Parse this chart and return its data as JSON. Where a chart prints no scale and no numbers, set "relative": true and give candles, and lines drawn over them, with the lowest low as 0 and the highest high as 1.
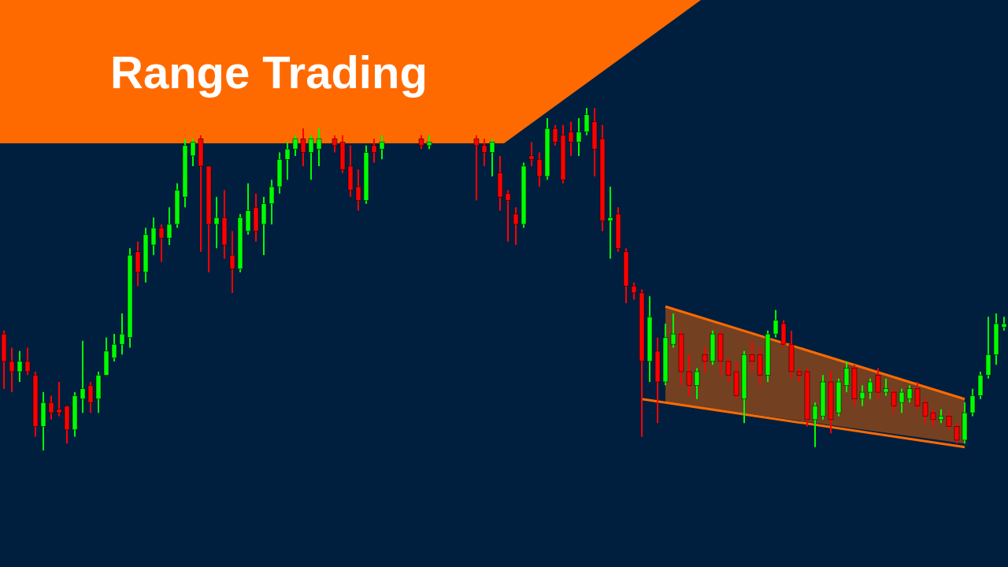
{
  "chart_data": {
    "type": "candlestick",
    "title": "Range Trading",
    "relative": true,
    "colors": [
      "#ff0000",
      "#ff0000",
      "#00ff00",
      "#ff0000",
      "#ff0000",
      "#00ff00",
      "#ff0000",
      "#ff0000",
      "#ff0000",
      "#00ff00",
      "#00ff00",
      "#ff0000",
      "#00ff00",
      "#00ff00",
      "#00ff00",
      "#00ff00",
      "#00ff00",
      "#ff0000",
      "#00ff00",
      "#00ff00",
      "#ff0000",
      "#00ff00",
      "#00ff00",
      "#00ff00",
      "#00ff00",
      "#ff0000",
      "#ff0000",
      "#00ff00",
      "#ff0000",
      "#ff0000",
      "#00ff00",
      "#00ff00",
      "#ff0000",
      "#00ff00",
      "#00ff00",
      "#00ff00",
      "#00ff00",
      "#00ff00",
      "#ff0000",
      "#00ff00",
      "#00ff00",
      null,
      "#ff0000",
      "#ff0000",
      "#ff0000",
      "#ff0000",
      "#00ff00",
      "#ff0000",
      "#00ff00",
      null,
      null,
      null,
      null,
      "#ff0000",
      "#00ff00",
      null,
      null,
      null,
      null,
      null,
      "#ff0000",
      "#ff0000",
      "#00ff00",
      "#ff0000",
      "#ff0000",
      "#ff0000",
      "#00ff00",
      "#ff0000",
      "#ff0000",
      "#00ff00",
      "#ff0000",
      "#ff0000",
      "#ff0000",
      "#00ff00",
      "#00ff00",
      "#ff0000",
      "#ff0000",
      "#00ff00",
      "#ff0000",
      "#ff0000",
      "#ff0000",
      "#ff0000",
      "#00ff00",
      "#ff0000",
      "#00ff00",
      "#00ff00",
      "#ff0000",
      "#ff0000",
      "#00ff00",
      "#ff0000",
      "#00ff00",
      "#ff0000",
      "#ff0000",
      "#ff0000",
      "#00ff00",
      "#ff0000",
      "#ff0000",
      "#00ff00",
      "#00ff00",
      "#ff0000",
      "#ff0000",
      "#ff0000",
      "#ff0000",
      "#00ff00",
      "#00ff00",
      "#ff0000",
      "#00ff00",
      "#00ff00",
      "#ff0000",
      "#00ff00",
      "#00ff00",
      "#ff0000",
      "#00ff00",
      "#ff0000",
      "#00ff00",
      "#00ff00",
      "#ff0000",
      "#ff0000",
      "#ff0000",
      "#00ff00",
      "#ff0000",
      "#ff0000",
      "#00ff00",
      "#00ff00",
      "#00ff00",
      "#00ff00",
      "#00ff00",
      "#00ff00"
    ],
    "categories": [
      null,
      null,
      null,
      null,
      null,
      null,
      null,
      null,
      null,
      null,
      null,
      null,
      null,
      null,
      null,
      null,
      null,
      null,
      null,
      null,
      null,
      null,
      null,
      null,
      null,
      null,
      null,
      null,
      null,
      null,
      null,
      null,
      null,
      null,
      null,
      null,
      null,
      null,
      null,
      null,
      null,
      null,
      null,
      null,
      null,
      null,
      null,
      null,
      null,
      null,
      null,
      null,
      null,
      null,
      null,
      null,
      null,
      null,
      null,
      null,
      null,
      null,
      null,
      null,
      null,
      null,
      null,
      null,
      null,
      null,
      null,
      null,
      null,
      null,
      null,
      null,
      null,
      null,
      null,
      null,
      null,
      null,
      null,
      null,
      null,
      null,
      null,
      null,
      null,
      null,
      null,
      null,
      null,
      null,
      null,
      null,
      null,
      null,
      null,
      null,
      null,
      null,
      null,
      null,
      null,
      null,
      null,
      null,
      null,
      null,
      null,
      null,
      null,
      null,
      null,
      null,
      null,
      null,
      null,
      null,
      null,
      null,
      null,
      null,
      null,
      null,
      null,
      null
    ],
    "ohlc": [
      [
        0.34,
        0.35,
        0.18,
        0.26
      ],
      [
        0.26,
        0.3,
        0.17,
        0.23
      ],
      [
        0.23,
        0.29,
        0.2,
        0.26
      ],
      [
        0.26,
        0.3,
        0.22,
        0.23
      ],
      [
        0.22,
        0.23,
        0.04,
        0.07
      ],
      [
        0.07,
        0.17,
        0,
        0.14
      ],
      [
        0.14,
        0.16,
        0.09,
        0.11
      ],
      [
        0.12,
        0.2,
        0.1,
        0.11
      ],
      [
        0.13,
        0.13,
        0.02,
        0.06
      ],
      [
        0.06,
        0.17,
        0.04,
        0.16
      ],
      [
        0.15,
        0.32,
        0.11,
        0.18
      ],
      [
        0.19,
        0.2,
        0.11,
        0.14
      ],
      [
        0.15,
        0.23,
        0.11,
        0.22
      ],
      [
        0.22,
        0.33,
        0.22,
        0.29
      ],
      [
        0.27,
        0.34,
        0.26,
        0.31
      ],
      [
        0.31,
        0.4,
        0.28,
        0.34
      ],
      [
        0.33,
        0.59,
        0.3,
        0.57
      ],
      [
        0.58,
        0.61,
        0.48,
        0.52
      ],
      [
        0.52,
        0.65,
        0.49,
        0.63
      ],
      [
        0.6,
        0.68,
        0.57,
        0.65
      ],
      [
        0.65,
        0.66,
        0.55,
        0.62
      ],
      [
        0.62,
        0.71,
        0.6,
        0.66
      ],
      [
        0.66,
        0.78,
        0.65,
        0.76
      ],
      [
        0.74,
        0.91,
        0.71,
        0.89
      ],
      [
        0.86,
        0.91,
        0.83,
        0.9
      ],
      [
        0.91,
        0.92,
        0.58,
        0.83
      ],
      [
        0.83,
        0.83,
        0.52,
        0.66
      ],
      [
        0.66,
        0.74,
        0.59,
        0.68
      ],
      [
        0.68,
        0.76,
        0.56,
        0.6
      ],
      [
        0.57,
        0.64,
        0.46,
        0.53
      ],
      [
        0.53,
        0.69,
        0.52,
        0.68
      ],
      [
        0.64,
        0.78,
        0.63,
        0.7
      ],
      [
        0.71,
        0.75,
        0.61,
        0.64
      ],
      [
        0.66,
        0.74,
        0.57,
        0.72
      ],
      [
        0.72,
        0.79,
        0.66,
        0.77
      ],
      [
        0.77,
        0.87,
        0.75,
        0.85
      ],
      [
        0.85,
        0.9,
        0.79,
        0.88
      ],
      [
        0.88,
        0.92,
        0.86,
        0.91
      ],
      [
        0.91,
        0.94,
        0.83,
        0.87
      ],
      [
        0.87,
        0.92,
        0.79,
        0.91
      ],
      [
        0.88,
        0.94,
        0.83,
        0.91
      ],
      null,
      [
        0.91,
        0.92,
        0.87,
        0.89
      ],
      [
        0.9,
        0.92,
        0.81,
        0.82
      ],
      [
        0.83,
        0.89,
        0.74,
        0.76
      ],
      [
        0.77,
        0.82,
        0.7,
        0.73
      ],
      [
        0.73,
        0.89,
        0.72,
        0.87
      ],
      [
        0.89,
        0.91,
        0.84,
        0.87
      ],
      [
        0.88,
        0.92,
        0.85,
        0.9
      ],
      null,
      null,
      null,
      null,
      [
        0.91,
        0.92,
        0.88,
        0.89
      ],
      [
        0.89,
        0.92,
        0.88,
        0.9
      ],
      null,
      null,
      null,
      null,
      null,
      [
        0.91,
        0.92,
        0.73,
        0.89
      ],
      [
        0.89,
        0.91,
        0.83,
        0.87
      ],
      [
        0.87,
        0.91,
        0.8,
        0.9
      ],
      [
        0.81,
        0.86,
        0.7,
        0.74
      ],
      [
        0.75,
        0.76,
        0.61,
        0.73
      ],
      [
        0.69,
        0.71,
        0.6,
        0.66
      ],
      [
        0.66,
        0.84,
        0.65,
        0.83
      ],
      [
        0.86,
        0.9,
        0.83,
        0.85
      ],
      [
        0.85,
        0.87,
        0.77,
        0.8
      ],
      [
        0.8,
        0.97,
        0.79,
        0.94
      ],
      [
        0.94,
        0.95,
        0.89,
        0.9
      ],
      [
        0.92,
        0.95,
        0.78,
        0.79
      ],
      [
        0.93,
        0.96,
        0.86,
        0.9
      ],
      [
        0.9,
        0.97,
        0.86,
        0.93
      ],
      [
        0.93,
        1,
        0.92,
        0.98
      ],
      [
        0.96,
        1,
        0.8,
        0.88
      ],
      [
        0.91,
        0.95,
        0.64,
        0.67
      ],
      [
        0.67,
        0.77,
        0.56,
        0.68
      ],
      [
        0.69,
        0.71,
        0.58,
        0.59
      ],
      [
        0.58,
        0.59,
        0.43,
        0.48
      ],
      [
        0.48,
        0.49,
        0.44,
        0.46
      ],
      [
        0.46,
        0.47,
        0.04,
        0.26
      ],
      [
        0.26,
        0.45,
        0.2,
        0.39
      ],
      [
        0.29,
        0.33,
        0.08,
        0.2
      ],
      [
        0.2,
        0.37,
        0.19,
        0.33
      ],
      [
        0.31,
        0.4,
        0.3,
        0.34
      ],
      [
        0.34,
        0.35,
        0.19,
        0.23
      ],
      [
        0.23,
        0.28,
        0.16,
        0.19
      ],
      [
        0.19,
        0.24,
        0.15,
        0.23
      ],
      [
        0.28,
        0.3,
        0.23,
        0.26
      ],
      [
        0.26,
        0.35,
        0.25,
        0.34
      ],
      [
        0.34,
        0.35,
        0.22,
        0.26
      ],
      [
        0.26,
        0.27,
        0.2,
        0.22
      ],
      [
        0.23,
        0.26,
        0.15,
        0.16
      ],
      [
        0.15,
        0.29,
        0.08,
        0.28
      ],
      [
        0.28,
        0.32,
        0.23,
        0.26
      ],
      [
        0.28,
        0.3,
        0.19,
        0.22
      ],
      [
        0.22,
        0.35,
        0.2,
        0.34
      ],
      [
        0.34,
        0.41,
        0.33,
        0.38
      ],
      [
        0.37,
        0.38,
        0.3,
        0.31
      ],
      [
        0.31,
        0.35,
        0.21,
        0.23
      ],
      [
        0.23,
        0.24,
        0.2,
        0.22
      ],
      [
        0.23,
        0.24,
        0.07,
        0.09
      ],
      [
        0.09,
        0.14,
        0.01,
        0.13
      ],
      [
        0.1,
        0.22,
        0.09,
        0.2
      ],
      [
        0.2,
        0.23,
        0.05,
        0.09
      ],
      [
        0.11,
        0.21,
        0.1,
        0.2
      ],
      [
        0.19,
        0.26,
        0.17,
        0.24
      ],
      [
        0.24,
        0.25,
        0.13,
        0.15
      ],
      [
        0.15,
        0.19,
        0.13,
        0.17
      ],
      [
        0.17,
        0.21,
        0.15,
        0.2
      ],
      [
        0.22,
        0.24,
        0.15,
        0.17
      ],
      [
        0.17,
        0.21,
        0.16,
        0.18
      ],
      [
        0.17,
        0.18,
        0.11,
        0.13
      ],
      [
        0.14,
        0.18,
        0.11,
        0.17
      ],
      [
        0.15,
        0.19,
        0.14,
        0.18
      ],
      [
        0.18,
        0.2,
        0.12,
        0.13
      ],
      [
        0.14,
        0.15,
        0.08,
        0.1
      ],
      [
        0.11,
        0.12,
        0.07,
        0.09
      ],
      [
        0.09,
        0.12,
        0.08,
        0.1
      ],
      [
        0.1,
        0.11,
        0.06,
        0.07
      ],
      [
        0.07,
        0.08,
        0.02,
        0.03
      ],
      [
        0.03,
        0.14,
        0.02,
        0.11
      ],
      [
        0.11,
        0.18,
        0.1,
        0.16
      ],
      [
        0.16,
        0.23,
        0.15,
        0.22
      ],
      [
        0.22,
        0.39,
        0.21,
        0.28
      ],
      [
        0.28,
        0.4,
        0.25,
        0.37
      ],
      [
        0.36,
        0.39,
        0.35,
        0.37
      ]
    ],
    "series": [
      {
        "type": "line",
        "color": "#ff6a00",
        "values": [
          null,
          null,
          null,
          null,
          null,
          null,
          null,
          null,
          null,
          null,
          null,
          null,
          null,
          null,
          null,
          null,
          null,
          null,
          null,
          null,
          null,
          null,
          null,
          null,
          null,
          null,
          null,
          null,
          null,
          null,
          null,
          null,
          null,
          null,
          null,
          null,
          null,
          null,
          null,
          null,
          null,
          null,
          null,
          null,
          null,
          null,
          null,
          null,
          null,
          null,
          null,
          null,
          null,
          null,
          null,
          null,
          null,
          null,
          null,
          null,
          null,
          null,
          null,
          null,
          null,
          null,
          null,
          null,
          null,
          null,
          null,
          null,
          null,
          null,
          null,
          null,
          null,
          null,
          null,
          null,
          null,
          null,
          null,
          null,
          0.42,
          null,
          null,
          null,
          null,
          null,
          null,
          null,
          null,
          null,
          null,
          null,
          null,
          null,
          null,
          null,
          null,
          null,
          null,
          null,
          null,
          null,
          null,
          null,
          null,
          null,
          null,
          null,
          null,
          null,
          null,
          null,
          null,
          null,
          null,
          null,
          null,
          null,
          0.15,
          null,
          null,
          null,
          null,
          null
        ],
        "lower": [
          null,
          null,
          null,
          null,
          null,
          null,
          null,
          null,
          null,
          null,
          null,
          null,
          null,
          null,
          null,
          null,
          null,
          null,
          null,
          null,
          null,
          null,
          null,
          null,
          null,
          null,
          null,
          null,
          null,
          null,
          null,
          null,
          null,
          null,
          null,
          null,
          null,
          null,
          null,
          null,
          null,
          null,
          null,
          null,
          null,
          null,
          null,
          null,
          null,
          null,
          null,
          null,
          null,
          null,
          null,
          null,
          null,
          null,
          null,
          null,
          null,
          null,
          null,
          null,
          null,
          null,
          null,
          null,
          null,
          null,
          null,
          null,
          null,
          null,
          null,
          null,
          null,
          null,
          null,
          null,
          null,
          null,
          null,
          null,
          0.14,
          null,
          null,
          null,
          null,
          null,
          null,
          null,
          null,
          null,
          null,
          null,
          null,
          null,
          null,
          null,
          null,
          null,
          null,
          null,
          null,
          null,
          null,
          null,
          null,
          null,
          null,
          null,
          null,
          null,
          null,
          null,
          null,
          null,
          null,
          null,
          null,
          null,
          0.02,
          null,
          null,
          null,
          null,
          null
        ],
        "upper": [
          null,
          null,
          null,
          null,
          null,
          null,
          null,
          null,
          null,
          null,
          null,
          null,
          null,
          null,
          null,
          null,
          null,
          null,
          null,
          null,
          null,
          null,
          null,
          null,
          null,
          null,
          null,
          null,
          null,
          null,
          null,
          null,
          null,
          null,
          null,
          null,
          null,
          null,
          null,
          null,
          null,
          null,
          null,
          null,
          null,
          null,
          null,
          null,
          null,
          null,
          null,
          null,
          null,
          null,
          null,
          null,
          null,
          null,
          null,
          null,
          null,
          null,
          null,
          null,
          null,
          null,
          null,
          null,
          null,
          null,
          null,
          null,
          null,
          null,
          null,
          null,
          null,
          null,
          null,
          null,
          null,
          null,
          null,
          null,
          0.42,
          null,
          null,
          null,
          null,
          null,
          null,
          null,
          null,
          null,
          null,
          null,
          null,
          null,
          null,
          null,
          null,
          null,
          null,
          null,
          null,
          null,
          null,
          null,
          null,
          null,
          null,
          null,
          null,
          null,
          null,
          null,
          null,
          null,
          null,
          null,
          null,
          null,
          0.15,
          null,
          null,
          null,
          null,
          null
        ]
      },
      {
        "type": "line",
        "color": "#ff6a00",
        "values": [
          null,
          null,
          null,
          null,
          null,
          null,
          null,
          null,
          null,
          null,
          null,
          null,
          null,
          null,
          null,
          null,
          null,
          null,
          null,
          null,
          null,
          null,
          null,
          null,
          null,
          null,
          null,
          null,
          null,
          null,
          null,
          null,
          null,
          null,
          null,
          null,
          null,
          null,
          null,
          null,
          null,
          null,
          null,
          null,
          null,
          null,
          null,
          null,
          null,
          null,
          null,
          null,
          null,
          null,
          null,
          null,
          null,
          null,
          null,
          null,
          null,
          null,
          null,
          null,
          null,
          null,
          null,
          null,
          null,
          null,
          null,
          null,
          null,
          null,
          null,
          null,
          null,
          null,
          null,
          null,
          null,
          0.15,
          null,
          null,
          null,
          null,
          null,
          null,
          null,
          null,
          null,
          null,
          null,
          null,
          null,
          null,
          null,
          null,
          null,
          null,
          null,
          null,
          null,
          null,
          null,
          null,
          null,
          null,
          null,
          null,
          null,
          null,
          null,
          null,
          null,
          null,
          null,
          null,
          null,
          null,
          null,
          null,
          0.01,
          null,
          null,
          null,
          null,
          null
        ]
      }
    ]
  }
}
